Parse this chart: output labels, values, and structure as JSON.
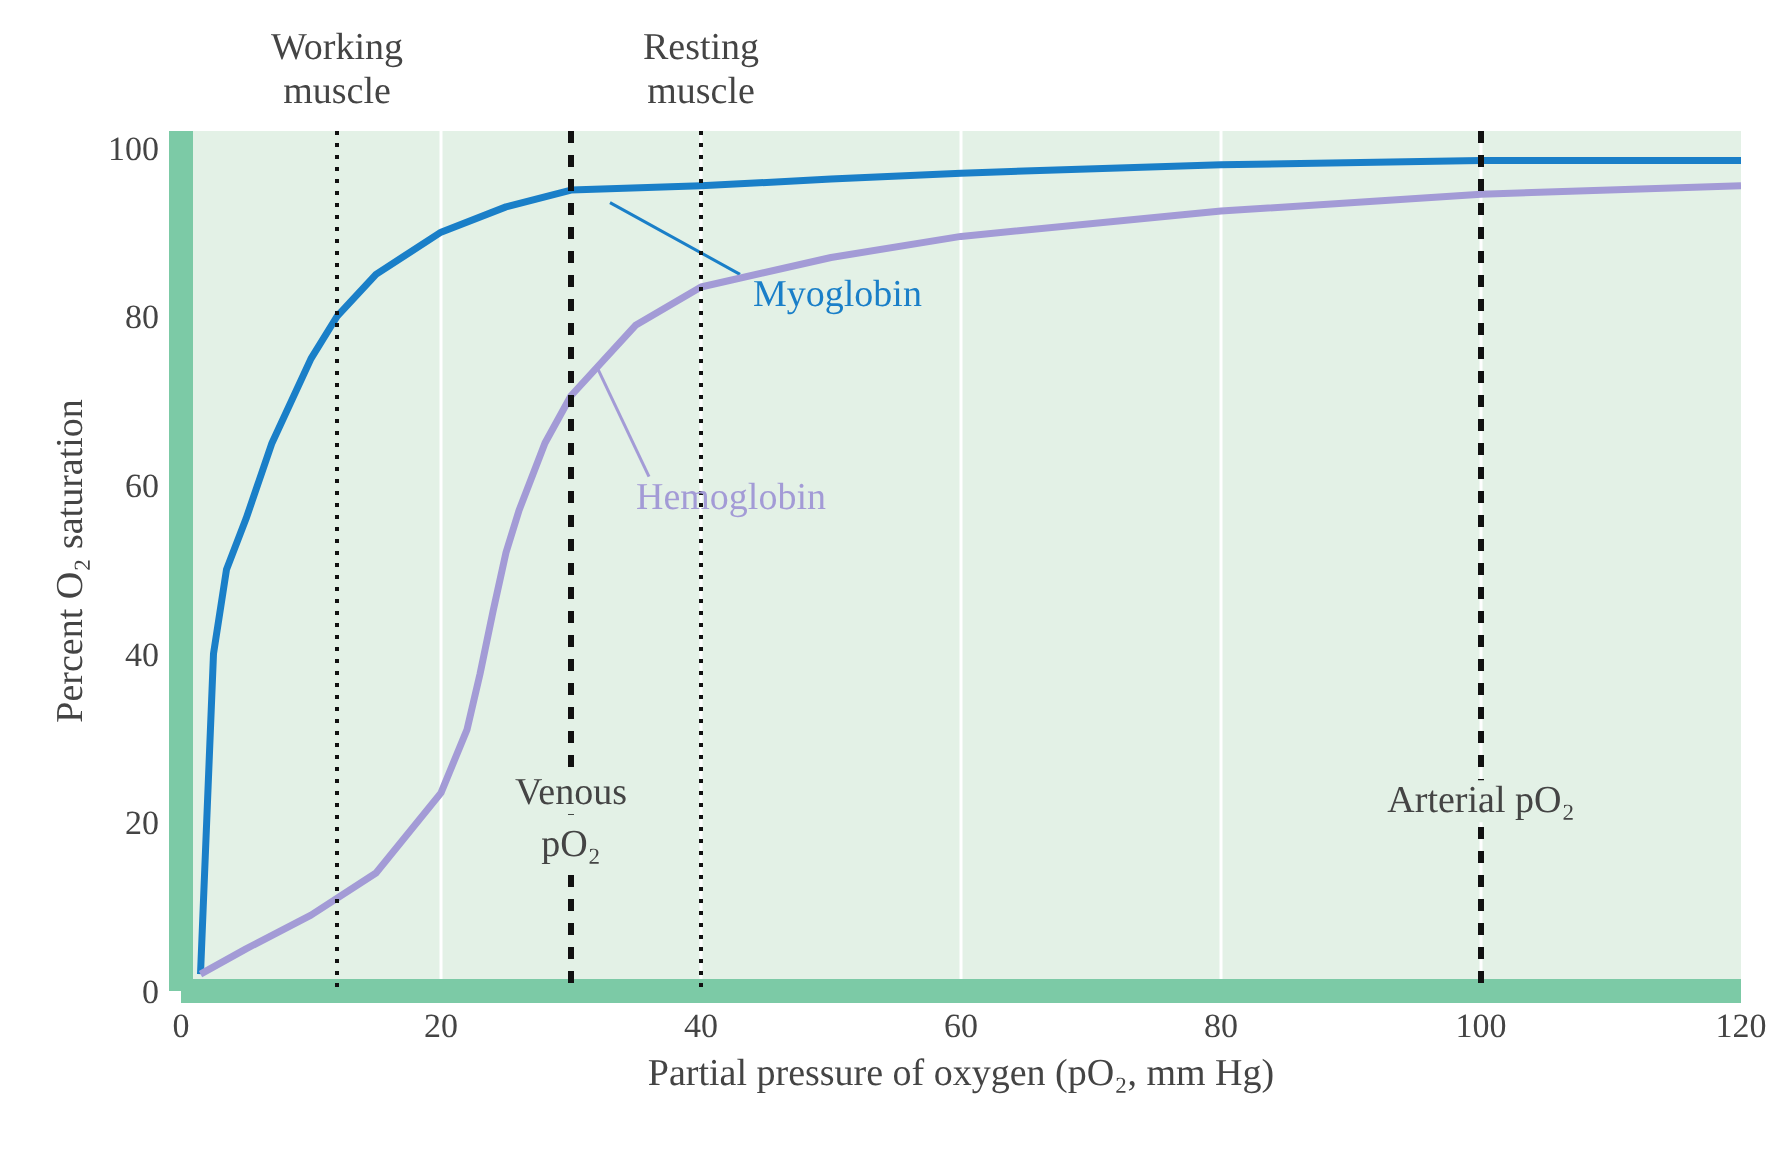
{
  "chart_data": {
    "type": "line",
    "xlabel": "Partial pressure of oxygen (pO₂, mm Hg)",
    "ylabel": "Percent O₂ saturation",
    "xlim": [
      0,
      120
    ],
    "ylim": [
      0,
      102
    ],
    "xticks": [
      0,
      20,
      40,
      60,
      80,
      100,
      120
    ],
    "yticks": [
      0,
      20,
      40,
      60,
      80,
      100
    ],
    "grid": "x",
    "legend": false,
    "marker": "none",
    "line_style": "solid",
    "series": [
      {
        "name": "Myoglobin",
        "color": "#1a7fc8",
        "x": [
          1.5,
          2.5,
          3.5,
          5,
          7,
          10,
          12,
          15,
          20,
          25,
          30,
          40,
          50,
          60,
          80,
          100,
          120
        ],
        "values": [
          2,
          40,
          50,
          56,
          65,
          75,
          80,
          85,
          90,
          93,
          95,
          95.5,
          96.3,
          97,
          98,
          98.5,
          98.5
        ]
      },
      {
        "name": "Hemoglobin",
        "color": "#a39bd6",
        "x": [
          1.5,
          5,
          10,
          15,
          20,
          22,
          23,
          24,
          25,
          26,
          28,
          30,
          35,
          40,
          50,
          60,
          80,
          100,
          120
        ],
        "values": [
          2,
          5,
          9,
          14,
          23.5,
          31,
          37.6,
          45,
          52,
          57,
          65,
          70.6,
          79,
          83.5,
          87,
          89.5,
          92.5,
          94.5,
          95.5
        ]
      }
    ],
    "ref_lines": [
      {
        "axis": "x",
        "value": 12,
        "label": "Working muscle",
        "line_style": "dotted",
        "color": "#111111"
      },
      {
        "axis": "x",
        "value": 30,
        "label": "Venous pO₂",
        "line_style": "dashed",
        "color": "#111111"
      },
      {
        "axis": "x",
        "value": 40,
        "label": "Resting muscle",
        "line_style": "dotted",
        "color": "#111111"
      },
      {
        "axis": "x",
        "value": 100,
        "label": "Arterial pO₂",
        "line_style": "dashed",
        "color": "#111111"
      }
    ]
  }
}
